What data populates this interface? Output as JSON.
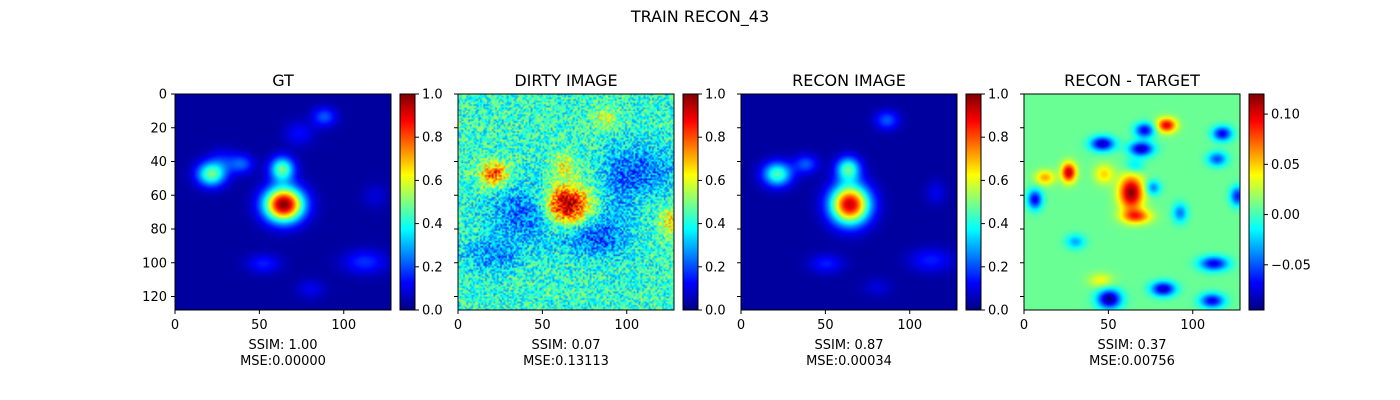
{
  "figure": {
    "title": "TRAIN RECON_43"
  },
  "jet_colors": [
    "#00007f",
    "#0000ff",
    "#007fff",
    "#00ffff",
    "#7fff7f",
    "#ffff00",
    "#ff7f00",
    "#ff0000",
    "#7f0000"
  ],
  "chart_data": [
    {
      "type": "heatmap",
      "title": "GT",
      "xticks": [
        0,
        50,
        100
      ],
      "yticks": [
        0,
        20,
        40,
        60,
        80,
        100,
        120
      ],
      "xlim": [
        0,
        128
      ],
      "ylim": [
        128,
        0
      ],
      "colorbar": {
        "range": [
          0,
          1
        ],
        "ticks": [
          "0.0",
          "0.2",
          "0.4",
          "0.6",
          "0.8",
          "1.0"
        ],
        "tick_values": [
          0,
          0.2,
          0.4,
          0.6,
          0.8,
          1.0
        ]
      },
      "caption": [
        "SSIM: 1.00",
        "MSE:0.00000"
      ],
      "background_level": 0.03,
      "noise": 0,
      "blobs": [
        {
          "x": 64,
          "y": 65,
          "rx": 8,
          "ry": 7,
          "value": 0.97
        },
        {
          "x": 63,
          "y": 44,
          "rx": 5,
          "ry": 5,
          "value": 0.45
        },
        {
          "x": 21,
          "y": 47,
          "rx": 6,
          "ry": 5,
          "value": 0.45
        },
        {
          "x": 39,
          "y": 41,
          "rx": 5,
          "ry": 4,
          "value": 0.18
        },
        {
          "x": 88,
          "y": 13,
          "rx": 5,
          "ry": 4,
          "value": 0.18
        },
        {
          "x": 112,
          "y": 99,
          "rx": 9,
          "ry": 5,
          "value": 0.14
        },
        {
          "x": 52,
          "y": 100,
          "rx": 7,
          "ry": 4,
          "value": 0.12
        },
        {
          "x": 80,
          "y": 115,
          "rx": 6,
          "ry": 4,
          "value": 0.08
        },
        {
          "x": 28,
          "y": 39,
          "rx": 6,
          "ry": 5,
          "value": 0.1
        },
        {
          "x": 73,
          "y": 23,
          "rx": 6,
          "ry": 5,
          "value": 0.1
        },
        {
          "x": 118,
          "y": 60,
          "rx": 5,
          "ry": 5,
          "value": 0.06
        }
      ]
    },
    {
      "type": "heatmap",
      "title": "DIRTY IMAGE",
      "xticks": [
        0,
        50,
        100
      ],
      "yticks": [],
      "xlim": [
        0,
        128
      ],
      "ylim": [
        128,
        0
      ],
      "colorbar": {
        "range": [
          0,
          1
        ],
        "ticks": [
          "0.0",
          "0.2",
          "0.4",
          "0.6",
          "0.8",
          "1.0"
        ],
        "tick_values": [
          0,
          0.2,
          0.4,
          0.6,
          0.8,
          1.0
        ]
      },
      "caption": [
        "SSIM: 0.07",
        "MSE:0.13113"
      ],
      "background_level": 0.42,
      "noise": 0.14,
      "blobs": [
        {
          "x": 64,
          "y": 65,
          "rx": 9,
          "ry": 8,
          "value": 0.6
        },
        {
          "x": 21,
          "y": 47,
          "rx": 6,
          "ry": 5,
          "value": 0.4
        },
        {
          "x": 62,
          "y": 42,
          "rx": 5,
          "ry": 5,
          "value": 0.2
        },
        {
          "x": 87,
          "y": 14,
          "rx": 5,
          "ry": 4,
          "value": 0.2
        },
        {
          "x": 110,
          "y": 45,
          "rx": 14,
          "ry": 10,
          "value": -0.18
        },
        {
          "x": 40,
          "y": 70,
          "rx": 15,
          "ry": 12,
          "value": -0.2
        },
        {
          "x": 80,
          "y": 85,
          "rx": 12,
          "ry": 8,
          "value": -0.2
        },
        {
          "x": 20,
          "y": 95,
          "rx": 12,
          "ry": 7,
          "value": -0.15
        },
        {
          "x": 95,
          "y": 60,
          "rx": 8,
          "ry": 20,
          "value": -0.1
        },
        {
          "x": 125,
          "y": 75,
          "rx": 4,
          "ry": 6,
          "value": 0.25
        }
      ]
    },
    {
      "type": "heatmap",
      "title": "RECON IMAGE",
      "xticks": [
        0,
        50,
        100
      ],
      "yticks": [],
      "xlim": [
        0,
        128
      ],
      "ylim": [
        128,
        0
      ],
      "colorbar": {
        "range": [
          0,
          1
        ],
        "ticks": [
          "0.0",
          "0.2",
          "0.4",
          "0.6",
          "0.8",
          "1.0"
        ],
        "tick_values": [
          0,
          0.2,
          0.4,
          0.6,
          0.8,
          1.0
        ]
      },
      "caption": [
        "SSIM: 0.87",
        "MSE:0.00034"
      ],
      "background_level": 0.03,
      "noise": 0,
      "blobs": [
        {
          "x": 64,
          "y": 65,
          "rx": 8,
          "ry": 8,
          "value": 0.9
        },
        {
          "x": 63,
          "y": 44,
          "rx": 5,
          "ry": 5,
          "value": 0.42
        },
        {
          "x": 21,
          "y": 47,
          "rx": 6,
          "ry": 5,
          "value": 0.42
        },
        {
          "x": 38,
          "y": 41,
          "rx": 5,
          "ry": 4,
          "value": 0.18
        },
        {
          "x": 86,
          "y": 15,
          "rx": 5,
          "ry": 4,
          "value": 0.18
        },
        {
          "x": 112,
          "y": 98,
          "rx": 9,
          "ry": 5,
          "value": 0.12
        },
        {
          "x": 50,
          "y": 100,
          "rx": 7,
          "ry": 4,
          "value": 0.12
        },
        {
          "x": 115,
          "y": 58,
          "rx": 4,
          "ry": 5,
          "value": 0.08
        },
        {
          "x": 80,
          "y": 114,
          "rx": 6,
          "ry": 4,
          "value": 0.06
        }
      ]
    },
    {
      "type": "heatmap",
      "title": "RECON - TARGET",
      "xticks": [
        0,
        50,
        100
      ],
      "yticks": [],
      "xlim": [
        0,
        128
      ],
      "ylim": [
        128,
        0
      ],
      "colorbar": {
        "range": [
          -0.095,
          0.12
        ],
        "ticks": [
          "−0.05",
          "0.00",
          "0.05",
          "0.10"
        ],
        "tick_values": [
          -0.05,
          0.0,
          0.05,
          0.1
        ]
      },
      "caption": [
        "SSIM: 0.37",
        "MSE:0.00756"
      ],
      "background_level": 0.008,
      "noise": 0,
      "blobs": [
        {
          "x": 63,
          "y": 58,
          "rx": 5,
          "ry": 7,
          "value": 0.11
        },
        {
          "x": 66,
          "y": 72,
          "rx": 6,
          "ry": 3,
          "value": 0.07
        },
        {
          "x": 26,
          "y": 46,
          "rx": 3,
          "ry": 4,
          "value": 0.1
        },
        {
          "x": 84,
          "y": 18,
          "rx": 4,
          "ry": 3,
          "value": 0.09
        },
        {
          "x": 12,
          "y": 49,
          "rx": 4,
          "ry": 3,
          "value": 0.05
        },
        {
          "x": 47,
          "y": 47,
          "rx": 4,
          "ry": 4,
          "value": 0.04
        },
        {
          "x": 46,
          "y": 29,
          "rx": 5,
          "ry": 3,
          "value": -0.09
        },
        {
          "x": 69,
          "y": 32,
          "rx": 5,
          "ry": 3,
          "value": -0.09
        },
        {
          "x": 71,
          "y": 21,
          "rx": 4,
          "ry": 3,
          "value": -0.08
        },
        {
          "x": 117,
          "y": 23,
          "rx": 4,
          "ry": 3,
          "value": -0.08
        },
        {
          "x": 114,
          "y": 38,
          "rx": 4,
          "ry": 3,
          "value": -0.06
        },
        {
          "x": 6,
          "y": 62,
          "rx": 3,
          "ry": 4,
          "value": -0.08
        },
        {
          "x": 50,
          "y": 121,
          "rx": 5,
          "ry": 4,
          "value": -0.1
        },
        {
          "x": 82,
          "y": 115,
          "rx": 5,
          "ry": 3,
          "value": -0.09
        },
        {
          "x": 112,
          "y": 100,
          "rx": 6,
          "ry": 3,
          "value": -0.08
        },
        {
          "x": 111,
          "y": 122,
          "rx": 5,
          "ry": 3,
          "value": -0.08
        },
        {
          "x": 92,
          "y": 70,
          "rx": 3,
          "ry": 4,
          "value": -0.05
        },
        {
          "x": 76,
          "y": 55,
          "rx": 3,
          "ry": 3,
          "value": -0.05
        },
        {
          "x": 126,
          "y": 60,
          "rx": 3,
          "ry": 4,
          "value": -0.07
        },
        {
          "x": 30,
          "y": 87,
          "rx": 4,
          "ry": 3,
          "value": -0.04
        },
        {
          "x": 65,
          "y": 42,
          "rx": 4,
          "ry": 3,
          "value": -0.03
        },
        {
          "x": 45,
          "y": 110,
          "rx": 5,
          "ry": 3,
          "value": 0.03
        }
      ]
    }
  ]
}
